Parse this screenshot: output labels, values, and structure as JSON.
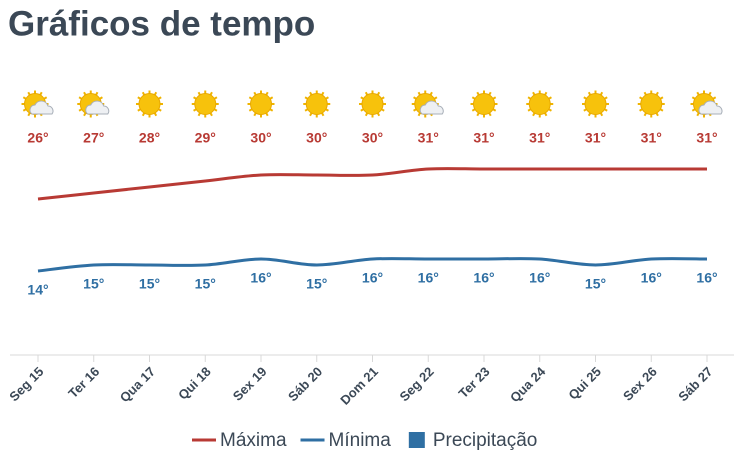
{
  "chart_data": {
    "type": "line",
    "title": "Gráficos de tempo",
    "categories": [
      "Seg 15",
      "Ter 16",
      "Qua 17",
      "Qui 18",
      "Sex 19",
      "Sáb 20",
      "Dom 21",
      "Seg 22",
      "Ter 23",
      "Qua 24",
      "Qui 25",
      "Sex 26",
      "Sáb 27"
    ],
    "series": [
      {
        "name": "Máxima",
        "color": "#b83a34",
        "values": [
          26,
          27,
          28,
          29,
          30,
          30,
          30,
          31,
          31,
          31,
          31,
          31,
          31
        ],
        "value_labels": [
          "26°",
          "27°",
          "28°",
          "29°",
          "30°",
          "30°",
          "30°",
          "31°",
          "31°",
          "31°",
          "31°",
          "31°",
          "31°"
        ]
      },
      {
        "name": "Mínima",
        "color": "#2f6fa3",
        "values": [
          14,
          15,
          15,
          15,
          16,
          15,
          16,
          16,
          16,
          16,
          15,
          16,
          16
        ],
        "value_labels": [
          "14°",
          "15°",
          "15°",
          "15°",
          "16°",
          "15°",
          "16°",
          "16°",
          "16°",
          "16°",
          "15°",
          "16°",
          "16°"
        ]
      },
      {
        "name": "Precipitação",
        "color": "#2f6fa3",
        "values": [
          0,
          0,
          0,
          0,
          0,
          0,
          0,
          0,
          0,
          0,
          0,
          0,
          0
        ]
      }
    ]
  }
}
